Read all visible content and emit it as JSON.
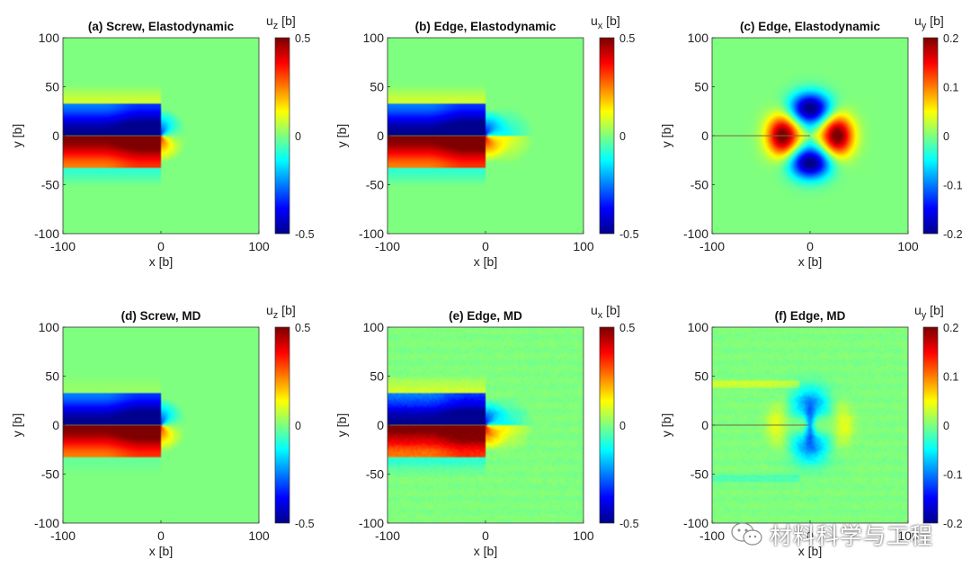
{
  "figure": {
    "watermark": "材料科学与工程",
    "colormap": [
      "#00008f",
      "#0000ff",
      "#007fff",
      "#00ffff",
      "#7fff7f",
      "#ffff00",
      "#ff7f00",
      "#ff0000",
      "#7f0000"
    ],
    "background_color": "#ffffff"
  },
  "chart_data": [
    {
      "type": "heatmap",
      "title": "(a) Screw, Elastodynamic",
      "xlabel": "x [b]",
      "ylabel": "y [b]",
      "xlim": [
        -100,
        100
      ],
      "ylim": [
        -100,
        100
      ],
      "xticks": [
        "-100",
        "0",
        "100"
      ],
      "yticks": [
        "100",
        "50",
        "0",
        "-50",
        "-100"
      ],
      "colorbar": {
        "label_base": "u",
        "label_sub": "z",
        "label_unit": " [b]",
        "range": [
          -0.5,
          0.5
        ],
        "ticks": [
          "0.5",
          "0",
          "-0.5"
        ]
      },
      "field": "screw_elastodynamic",
      "noise": false
    },
    {
      "type": "heatmap",
      "title": "(b) Edge, Elastodynamic",
      "xlabel": "x [b]",
      "ylabel": "y [b]",
      "xlim": [
        -100,
        100
      ],
      "ylim": [
        -100,
        100
      ],
      "xticks": [
        "-100",
        "0",
        "100"
      ],
      "yticks": [
        "100",
        "50",
        "0",
        "-50",
        "-100"
      ],
      "colorbar": {
        "label_base": "u",
        "label_sub": "x",
        "label_unit": " [b]",
        "range": [
          -0.5,
          0.5
        ],
        "ticks": [
          "0.5",
          "0",
          "-0.5"
        ]
      },
      "field": "edge_ux_elastodynamic",
      "noise": false
    },
    {
      "type": "heatmap",
      "title": "(c) Edge, Elastodynamic",
      "xlabel": "x [b]",
      "ylabel": "y [b]",
      "xlim": [
        -100,
        100
      ],
      "ylim": [
        -100,
        100
      ],
      "xticks": [
        "-100",
        "0",
        "100"
      ],
      "yticks": [
        "100",
        "50",
        "0",
        "-50",
        "-100"
      ],
      "colorbar": {
        "label_base": "u",
        "label_sub": "y",
        "label_unit": " [b]",
        "range": [
          -0.2,
          0.2
        ],
        "ticks": [
          "0.2",
          "0.1",
          "0",
          "-0.1",
          "-0.2"
        ]
      },
      "field": "edge_uy_elastodynamic",
      "noise": false
    },
    {
      "type": "heatmap",
      "title": "(d) Screw, MD",
      "xlabel": "x [b]",
      "ylabel": "y [b]",
      "xlim": [
        -100,
        100
      ],
      "ylim": [
        -100,
        100
      ],
      "xticks": [
        "-100",
        "0",
        "100"
      ],
      "yticks": [
        "100",
        "50",
        "0",
        "-50",
        "-100"
      ],
      "colorbar": {
        "label_base": "u",
        "label_sub": "z",
        "label_unit": " [b]",
        "range": [
          -0.5,
          0.5
        ],
        "ticks": [
          "0.5",
          "0",
          "-0.5"
        ]
      },
      "field": "screw_md",
      "noise": false
    },
    {
      "type": "heatmap",
      "title": "(e) Edge, MD",
      "xlabel": "x [b]",
      "ylabel": "y [b]",
      "xlim": [
        -100,
        100
      ],
      "ylim": [
        -100,
        100
      ],
      "xticks": [
        "-100",
        "0",
        "100"
      ],
      "yticks": [
        "100",
        "50",
        "0",
        "-50",
        "-100"
      ],
      "colorbar": {
        "label_base": "u",
        "label_sub": "x",
        "label_unit": " [b]",
        "range": [
          -0.5,
          0.5
        ],
        "ticks": [
          "0.5",
          "0",
          "-0.5"
        ]
      },
      "field": "edge_ux_md",
      "noise": true
    },
    {
      "type": "heatmap",
      "title": "(f) Edge, MD",
      "xlabel": "x [b]",
      "ylabel": "y [b]",
      "xlim": [
        -100,
        100
      ],
      "ylim": [
        -100,
        100
      ],
      "xticks": [
        "-100",
        "0",
        "100"
      ],
      "yticks": [
        "100",
        "50",
        "0",
        "-50",
        "-100"
      ],
      "colorbar": {
        "label_base": "u",
        "label_sub": "y",
        "label_unit": " [b]",
        "range": [
          -0.2,
          0.2
        ],
        "ticks": [
          "0.2",
          "0.1",
          "0",
          "-0.1",
          "-0.2"
        ]
      },
      "field": "edge_uy_md",
      "noise": true
    }
  ]
}
